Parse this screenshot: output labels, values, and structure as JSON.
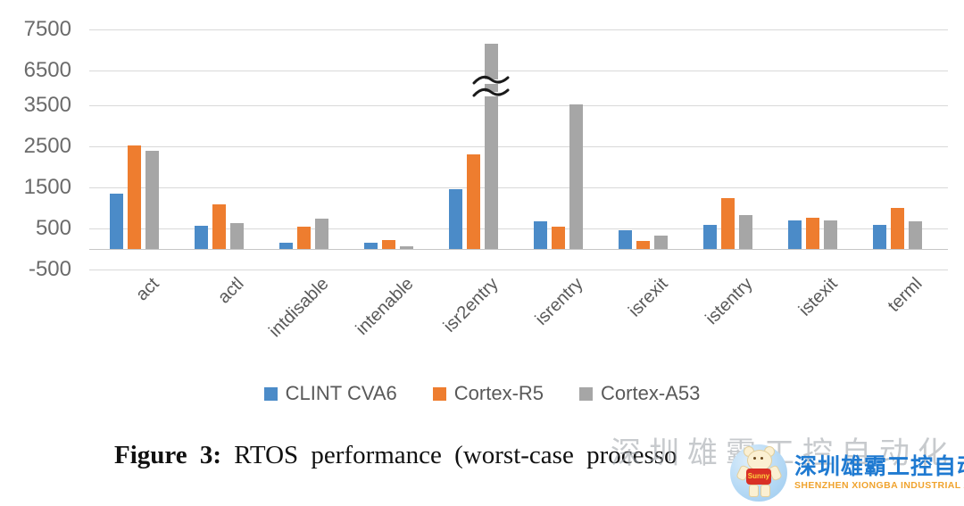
{
  "chart_data": {
    "type": "bar",
    "title": "",
    "xlabel": "",
    "ylabel": "",
    "categories": [
      "act",
      "actl",
      "intdisable",
      "intenable",
      "isr2entry",
      "isrentry",
      "isrexit",
      "istentry",
      "istexit",
      "terml"
    ],
    "series": [
      {
        "name": "CLINT CVA6",
        "color": "#4b8bc8",
        "values": [
          1350,
          570,
          150,
          160,
          1460,
          680,
          460,
          590,
          700,
          590
        ]
      },
      {
        "name": "Cortex-R5",
        "color": "#ee7d2f",
        "values": [
          2520,
          1090,
          540,
          210,
          2310,
          540,
          200,
          1240,
          760,
          1010
        ]
      },
      {
        "name": "Cortex-A53",
        "color": "#a6a6a6",
        "values": [
          2400,
          620,
          750,
          70,
          7150,
          3570,
          330,
          830,
          700,
          680
        ]
      }
    ],
    "yticks": [
      7500,
      6500,
      3500,
      2500,
      1500,
      500,
      -500
    ],
    "ylim": [
      -500,
      7650
    ],
    "grid": "horizontal",
    "legend_position": "bottom",
    "axis_break": {
      "between": [
        3500,
        6500
      ],
      "category": "isr2entry",
      "series": "Cortex-A53"
    }
  },
  "caption": {
    "label": "Figure 3:",
    "text": " RTOS performance (worst-case processo"
  },
  "watermark": {
    "ghost_text": "深圳雄霸工控自动化",
    "brand_cn": "深圳雄霸工控自动化",
    "brand_en": "SHENZHEN XIONGBA INDUSTRIAL AUTOMATION",
    "mascot_text": "Sunny",
    "colors": {
      "brand_blue": "#1f7ad1",
      "brand_orange": "#f0a32e",
      "badge_bg": "#b5d9f5"
    }
  }
}
